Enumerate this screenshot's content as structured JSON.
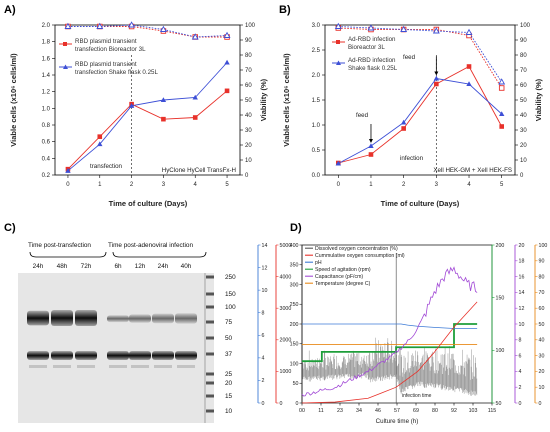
{
  "panels": {
    "a": {
      "label": "A)",
      "xlabel": "Time of culture (Days)",
      "ylabel_left": "Viable cells (x10⁶ cells/ml)",
      "ylabel_right": "Viability (%)",
      "xticks": [
        "0",
        "1",
        "2",
        "3",
        "4",
        "5"
      ],
      "yticks_left": [
        "0.2",
        "0.4",
        "0.6",
        "0.8",
        "1.0",
        "1.2",
        "1.4",
        "1.6",
        "1.8",
        "2.0"
      ],
      "yticks_right": [
        "0",
        "10",
        "20",
        "30",
        "40",
        "50",
        "60",
        "70",
        "80",
        "90",
        "100"
      ],
      "legend": [
        {
          "label_l1": "RBD plasmid transient",
          "label_l2": "transfection Bioreactor 3L",
          "color": "#e8312a"
        },
        {
          "label_l1": "RBD plasmid transient",
          "label_l2": "transfection Shake flask 0.25L",
          "color": "#3d4fd6"
        }
      ],
      "annotation_event": "transfection",
      "annotation_medium": "HyClone HyCell TransFx-H"
    },
    "b": {
      "label": "B)",
      "xlabel": "Time of culture (Days)",
      "ylabel_left": "Viable cells (x10⁶ cells/ml)",
      "ylabel_right": "Viability (%)",
      "xticks": [
        "0",
        "1",
        "2",
        "3",
        "4",
        "5"
      ],
      "yticks_left": [
        "0.0",
        "0.5",
        "1.0",
        "1.5",
        "2.0",
        "2.5",
        "3.0"
      ],
      "yticks_right": [
        "0",
        "10",
        "20",
        "30",
        "40",
        "50",
        "60",
        "70",
        "80",
        "90",
        "100"
      ],
      "legend": [
        {
          "label_l1": "Ad-RBD infection",
          "label_l2": "Bioreactor 3L",
          "color": "#e8312a"
        },
        {
          "label_l1": "Ad-RBD infection",
          "label_l2": "Shake flask 0.25L",
          "color": "#3d4fd6"
        }
      ],
      "annotation_feed1": "feed",
      "annotation_feed2": "feed",
      "annotation_event": "infection",
      "annotation_medium": "Xell HEK-GM + Xell HEK-FS"
    },
    "c": {
      "label": "C)",
      "group1": "Time post-transfection",
      "group2": "Time post-adenoviral infection",
      "lanes1": [
        "24h",
        "48h",
        "72h"
      ],
      "lanes2": [
        "6h",
        "12h",
        "24h",
        "40h"
      ],
      "markers": [
        "250",
        "150",
        "100",
        "75",
        "50",
        "37",
        "25",
        "20",
        "15",
        "10"
      ]
    },
    "d": {
      "label": "D)",
      "xlabel": "Culture time (h)",
      "xticks": [
        "00",
        "11",
        "23",
        "34",
        "46",
        "57",
        "69",
        "80",
        "92",
        "103",
        "115"
      ],
      "ticks_ax_blue": [
        "0",
        "2",
        "4",
        "6",
        "8",
        "10",
        "12",
        "14"
      ],
      "ticks_ax_red": [
        "0",
        "1000",
        "2000",
        "3000",
        "4000",
        "5000"
      ],
      "ticks_ax_black": [
        "0",
        "50",
        "100",
        "150",
        "200",
        "250",
        "300",
        "350",
        "400"
      ],
      "ticks_ax_green": [
        "50",
        "100",
        "150",
        "200"
      ],
      "ticks_ax_purple": [
        "0",
        "2",
        "4",
        "6",
        "8",
        "10",
        "12",
        "14",
        "16",
        "18",
        "20"
      ],
      "ticks_ax_orange": [
        "0",
        "10",
        "20",
        "30",
        "40",
        "50",
        "60",
        "70",
        "80",
        "90",
        "100"
      ],
      "legend": [
        {
          "label": "Dissolved oxygen concentration (%)",
          "color": "#555555"
        },
        {
          "label": "Cummulative oxygen consumption (ml)",
          "color": "#e8312a"
        },
        {
          "label": "pH",
          "color": "#3d7bd6"
        },
        {
          "label": "Speed of agitation (rpm)",
          "color": "#1e9e3a"
        },
        {
          "label": "Capacitance (pF/cm)",
          "color": "#a24ad6"
        },
        {
          "label": "Temperature (degree C)",
          "color": "#e88a1a"
        }
      ],
      "annotation_event": "infection time"
    }
  },
  "chart_data": [
    {
      "type": "line",
      "title": "A)",
      "xlabel": "Time of culture (Days)",
      "ylabel": "Viable cells (x10⁶ cells/ml)",
      "y2label": "Viability (%)",
      "x": [
        0,
        1,
        2,
        3,
        4,
        5
      ],
      "ylim": [
        0.2,
        2.0
      ],
      "y2lim": [
        0,
        100
      ],
      "series": [
        {
          "name": "RBD plasmid transient transfection Bioreactor 3L",
          "axis": "left",
          "color": "#e8312a",
          "marker": "square",
          "values": [
            0.27,
            0.66,
            1.05,
            0.87,
            0.89,
            1.21
          ]
        },
        {
          "name": "RBD plasmid transient transfection Shake flask 0.25L",
          "axis": "left",
          "color": "#3d4fd6",
          "marker": "triangle",
          "values": [
            0.25,
            0.57,
            1.03,
            1.1,
            1.13,
            1.55
          ]
        },
        {
          "name": "",
          "axis": "right",
          "color": "#e8312a",
          "marker": "open-square",
          "values": [
            99,
            99,
            99,
            96,
            92,
            92
          ]
        },
        {
          "name": "",
          "axis": "right",
          "color": "#3d4fd6",
          "marker": "open-triangle",
          "values": [
            99,
            99,
            100,
            97,
            92,
            93
          ]
        }
      ],
      "vline_x": 2
    },
    {
      "type": "line",
      "title": "B)",
      "xlabel": "Time of culture (Days)",
      "ylabel": "Viable cells (x10⁶ cells/ml)",
      "y2label": "Viability (%)",
      "x": [
        0,
        1,
        2,
        3,
        4,
        5
      ],
      "ylim": [
        0.0,
        3.0
      ],
      "y2lim": [
        0,
        100
      ],
      "series": [
        {
          "name": "Ad-RBD infection Bioreactor 3L",
          "axis": "left",
          "color": "#e8312a",
          "marker": "square",
          "values": [
            0.24,
            0.41,
            0.93,
            1.82,
            2.17,
            0.97
          ]
        },
        {
          "name": "Ad-RBD infection Shake flask 0.25L",
          "axis": "left",
          "color": "#3d4fd6",
          "marker": "triangle",
          "values": [
            0.23,
            0.58,
            1.05,
            1.93,
            1.82,
            1.22
          ]
        },
        {
          "name": "",
          "axis": "right",
          "color": "#e8312a",
          "marker": "open-square",
          "values": [
            98,
            97,
            97,
            97,
            93,
            58
          ]
        },
        {
          "name": "",
          "axis": "right",
          "color": "#3d4fd6",
          "marker": "open-triangle",
          "values": [
            99,
            98,
            97,
            96,
            95,
            62
          ]
        }
      ],
      "vline_x": 3,
      "feed_x": [
        1,
        3
      ]
    },
    {
      "type": "line",
      "title": "D)",
      "xlabel": "Culture time (h)",
      "xlim": [
        0,
        115
      ],
      "series": [
        {
          "name": "Speed of agitation (rpm)",
          "axis": "green",
          "ylim": [
            30,
            200
          ],
          "color": "#1e9e3a",
          "x": [
            0,
            12,
            12,
            57,
            57,
            92,
            92,
            106
          ],
          "values": [
            75,
            75,
            85,
            85,
            90,
            90,
            115,
            115
          ]
        },
        {
          "name": "pH",
          "axis": "blue",
          "ylim": [
            0,
            14
          ],
          "color": "#3d7bd6",
          "x": [
            0,
            60,
            64,
            70,
            80,
            92,
            106
          ],
          "values": [
            7.0,
            7.0,
            6.9,
            6.8,
            6.7,
            6.6,
            6.6
          ]
        },
        {
          "name": "Temperature (degree C)",
          "axis": "orange",
          "ylim": [
            0,
            100
          ],
          "color": "#e88a1a",
          "x": [
            0,
            106
          ],
          "values": [
            37,
            37
          ]
        },
        {
          "name": "Cummulative oxygen consumption (ml)",
          "axis": "red",
          "ylim": [
            0,
            5000
          ],
          "color": "#e8312a",
          "x": [
            0,
            20,
            40,
            57,
            70,
            80,
            92,
            106
          ],
          "values": [
            0,
            30,
            150,
            500,
            1000,
            1600,
            2400,
            3200
          ]
        },
        {
          "name": "Capacitance (pF/cm)",
          "axis": "purple",
          "ylim": [
            0,
            20
          ],
          "color": "#a24ad6",
          "x": [
            0,
            20,
            40,
            55,
            65,
            72,
            80,
            86,
            92,
            96,
            100,
            106
          ],
          "values": [
            1,
            2,
            4,
            6,
            8,
            10,
            14,
            16,
            17,
            16,
            15,
            14.5
          ]
        },
        {
          "name": "Dissolved oxygen concentration (%)",
          "axis": "black",
          "ylim": [
            0,
            400
          ],
          "color": "#555555",
          "x": [
            0,
            20,
            40,
            57,
            60,
            70,
            80,
            90,
            100,
            106
          ],
          "values": [
            80,
            85,
            90,
            100,
            60,
            80,
            75,
            70,
            60,
            55
          ]
        }
      ],
      "vline_x": 57
    }
  ]
}
